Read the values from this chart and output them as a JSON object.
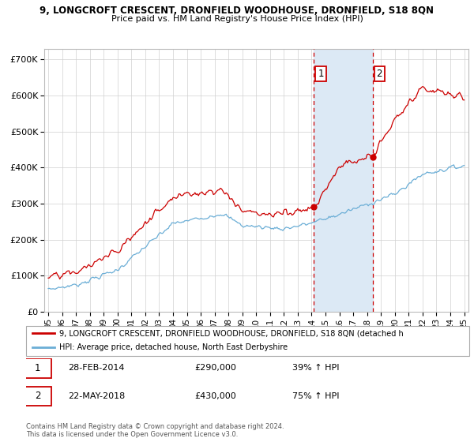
{
  "title": "9, LONGCROFT CRESCENT, DRONFIELD WOODHOUSE, DRONFIELD, S18 8QN",
  "subtitle": "Price paid vs. HM Land Registry's House Price Index (HPI)",
  "ylabel_ticks": [
    "£0",
    "£100K",
    "£200K",
    "£300K",
    "£400K",
    "£500K",
    "£600K",
    "£700K"
  ],
  "ytick_vals": [
    0,
    100000,
    200000,
    300000,
    400000,
    500000,
    600000,
    700000
  ],
  "ylim": [
    0,
    730000
  ],
  "xlim_start": 1994.7,
  "xlim_end": 2025.3,
  "hpi_color": "#6baed6",
  "price_color": "#cc0000",
  "sale1_date": 2014.167,
  "sale1_price": 290000,
  "sale2_date": 2018.39,
  "sale2_price": 430000,
  "sale1_label": "1",
  "sale2_label": "2",
  "highlight_start": 2014.167,
  "highlight_end": 2018.39,
  "highlight_color": "#dce9f5",
  "legend_line1": "9, LONGCROFT CRESCENT, DRONFIELD WOODHOUSE, DRONFIELD, S18 8QN (detached h",
  "legend_line2": "HPI: Average price, detached house, North East Derbyshire",
  "footer1": "Contains HM Land Registry data © Crown copyright and database right 2024.",
  "footer2": "This data is licensed under the Open Government Licence v3.0.",
  "table_row1": [
    "1",
    "28-FEB-2014",
    "£290,000",
    "39% ↑ HPI"
  ],
  "table_row2": [
    "2",
    "22-MAY-2018",
    "£430,000",
    "75% ↑ HPI"
  ],
  "xticks": [
    1995,
    1996,
    1997,
    1998,
    1999,
    2000,
    2001,
    2002,
    2003,
    2004,
    2005,
    2006,
    2007,
    2008,
    2009,
    2010,
    2011,
    2012,
    2013,
    2014,
    2015,
    2016,
    2017,
    2018,
    2019,
    2020,
    2021,
    2022,
    2023,
    2024,
    2025
  ],
  "xtick_labels": [
    "95",
    "96",
    "97",
    "98",
    "99",
    "00",
    "01",
    "02",
    "03",
    "04",
    "05",
    "06",
    "07",
    "08",
    "09",
    "10",
    "11",
    "12",
    "13",
    "14",
    "15",
    "16",
    "17",
    "18",
    "19",
    "20",
    "21",
    "22",
    "23",
    "24",
    "25"
  ]
}
